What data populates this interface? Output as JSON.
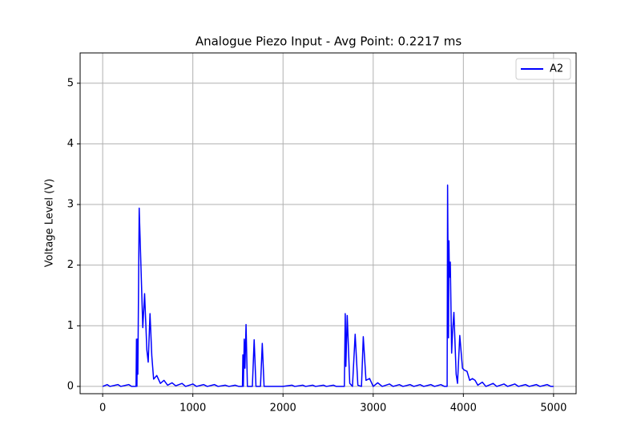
{
  "chart_data": {
    "type": "line",
    "title": "Analogue Piezo Input - Avg Point: 0.2217 ms",
    "y_label": "Voltage Level (V)",
    "x": [
      0,
      50,
      80,
      170,
      200,
      290,
      320,
      370,
      375,
      380,
      385,
      390,
      405,
      420,
      445,
      465,
      490,
      505,
      525,
      545,
      565,
      600,
      640,
      680,
      720,
      770,
      810,
      880,
      920,
      1000,
      1040,
      1120,
      1160,
      1240,
      1280,
      1360,
      1400,
      1470,
      1510,
      1550,
      1555,
      1560,
      1570,
      1578,
      1590,
      1605,
      1660,
      1680,
      1700,
      1750,
      1770,
      1790,
      2000,
      2100,
      2130,
      2220,
      2250,
      2330,
      2360,
      2450,
      2480,
      2560,
      2590,
      2680,
      2690,
      2697,
      2712,
      2740,
      2770,
      2800,
      2830,
      2870,
      2890,
      2920,
      2960,
      3000,
      3050,
      3100,
      3180,
      3220,
      3290,
      3330,
      3410,
      3450,
      3520,
      3560,
      3640,
      3680,
      3750,
      3790,
      3820,
      3825,
      3835,
      3840,
      3845,
      3855,
      3870,
      3880,
      3895,
      3920,
      3935,
      3960,
      3990,
      4010,
      4040,
      4070,
      4100,
      4130,
      4160,
      4210,
      4250,
      4330,
      4370,
      4450,
      4490,
      4570,
      4610,
      4690,
      4730,
      4810,
      4850,
      4930,
      4970,
      5000
    ],
    "series": [
      {
        "name": "A2",
        "color": "#0000ff",
        "values": [
          0,
          0.03,
          0,
          0.03,
          0,
          0.03,
          0,
          0,
          0.78,
          0,
          0.78,
          0.2,
          2.94,
          2.2,
          0.97,
          1.53,
          0.6,
          0.4,
          1.2,
          0.5,
          0.12,
          0.18,
          0.05,
          0.1,
          0.02,
          0.06,
          0.01,
          0.05,
          0,
          0.04,
          0,
          0.03,
          0,
          0.03,
          0,
          0.02,
          0,
          0.02,
          0,
          0,
          0.52,
          0,
          0.78,
          0.3,
          1.02,
          0,
          0,
          0.77,
          0,
          0,
          0.71,
          0,
          0,
          0.02,
          0,
          0.02,
          0,
          0.02,
          0,
          0.02,
          0,
          0.02,
          0,
          0,
          1.2,
          0.33,
          1.17,
          0.05,
          0,
          0.86,
          0.02,
          0,
          0.82,
          0.1,
          0.13,
          0,
          0.06,
          0,
          0.04,
          0,
          0.03,
          0,
          0.03,
          0,
          0.03,
          0,
          0.03,
          0,
          0.03,
          0,
          0,
          3.32,
          0.8,
          2.4,
          1.8,
          2.05,
          0.55,
          0.9,
          1.22,
          0.2,
          0.05,
          0.84,
          0.3,
          0.27,
          0.25,
          0.1,
          0.13,
          0.1,
          0.02,
          0.07,
          0,
          0.05,
          0,
          0.04,
          0,
          0.04,
          0,
          0.03,
          0,
          0.03,
          0,
          0.03,
          0,
          0
        ]
      }
    ],
    "xlim": [
      -250,
      5250
    ],
    "ylim": [
      -0.12,
      5.5
    ],
    "xticks": [
      0,
      1000,
      2000,
      3000,
      4000,
      5000
    ],
    "yticks": [
      0,
      1,
      2,
      3,
      4,
      5
    ],
    "grid": true,
    "legend": "upper right"
  }
}
